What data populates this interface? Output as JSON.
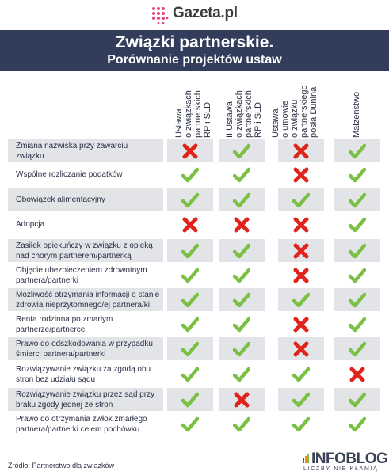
{
  "header": {
    "logo_text": "Gazeta.pl",
    "title": "Związki partnerskie.",
    "subtitle": "Porównanie projektów ustaw",
    "accent_color": "#e9447a",
    "banner_color": "#313d5b"
  },
  "columns": [
    "Ustawa\no związkach\npartnerskich\nRP i SLD",
    "II Ustawa\no związkach\npartnerskich\nRP i SLD",
    "Ustawa\no umowie\no związku\npartnerskiego\nposła Dunina",
    "Małżeństwo"
  ],
  "rows": [
    {
      "label": "Zmiana nazwiska przy zawarciu\nzwiązku",
      "marks": [
        "no",
        "yes",
        "no",
        "yes"
      ]
    },
    {
      "label": "Wspólne rozliczanie podatków",
      "marks": [
        "yes",
        "yes",
        "no",
        "yes"
      ]
    },
    {
      "label": "Obowiązek alimentacyjny",
      "marks": [
        "yes",
        "yes",
        "yes",
        "yes"
      ]
    },
    {
      "label": "Adopcja",
      "marks": [
        "no",
        "no",
        "no",
        "yes"
      ]
    },
    {
      "label": "Zasiłek opiekuńczy w związku z opieką\nnad chorym partnerem/partnerką",
      "marks": [
        "yes",
        "yes",
        "no",
        "yes"
      ]
    },
    {
      "label": "Objęcie ubezpieczeniem zdrowotnym\npartnera/partnerki",
      "marks": [
        "yes",
        "yes",
        "no",
        "yes"
      ]
    },
    {
      "label": "Możliwość otrzymania informacji o stanie\nzdrowia nieprzytomnego/ej partnera/ki",
      "marks": [
        "yes",
        "yes",
        "yes",
        "yes"
      ]
    },
    {
      "label": "Renta rodzinna po zmarłym\npartnerze/partnerce",
      "marks": [
        "yes",
        "yes",
        "no",
        "yes"
      ]
    },
    {
      "label": "Prawo do odszkodowania w przypadku\nśmierci partnera/partnerki",
      "marks": [
        "yes",
        "yes",
        "no",
        "yes"
      ]
    },
    {
      "label": "Rozwiązywanie związku za zgodą obu\nstron bez udziału sądu",
      "marks": [
        "yes",
        "yes",
        "yes",
        "no"
      ]
    },
    {
      "label": "Rozwiązywanie związku przez sąd przy\nbraku zgody jednej ze stron",
      "marks": [
        "yes",
        "no",
        "yes",
        "yes"
      ]
    },
    {
      "label": "Prawo do otrzymania zwłok zmarłego\npartnera/partnerki celem pochówku",
      "marks": [
        "yes",
        "yes",
        "yes",
        "yes"
      ]
    }
  ],
  "footer": {
    "source": "Źródło: Partnerstwo dla związków",
    "brand_title": "INFOBLOG",
    "brand_tagline": "LICZBY NIE KŁAMIĄ"
  },
  "colors": {
    "check": "#7ac143",
    "cross": "#e0241b",
    "row_shade": "#e3e4e7"
  }
}
